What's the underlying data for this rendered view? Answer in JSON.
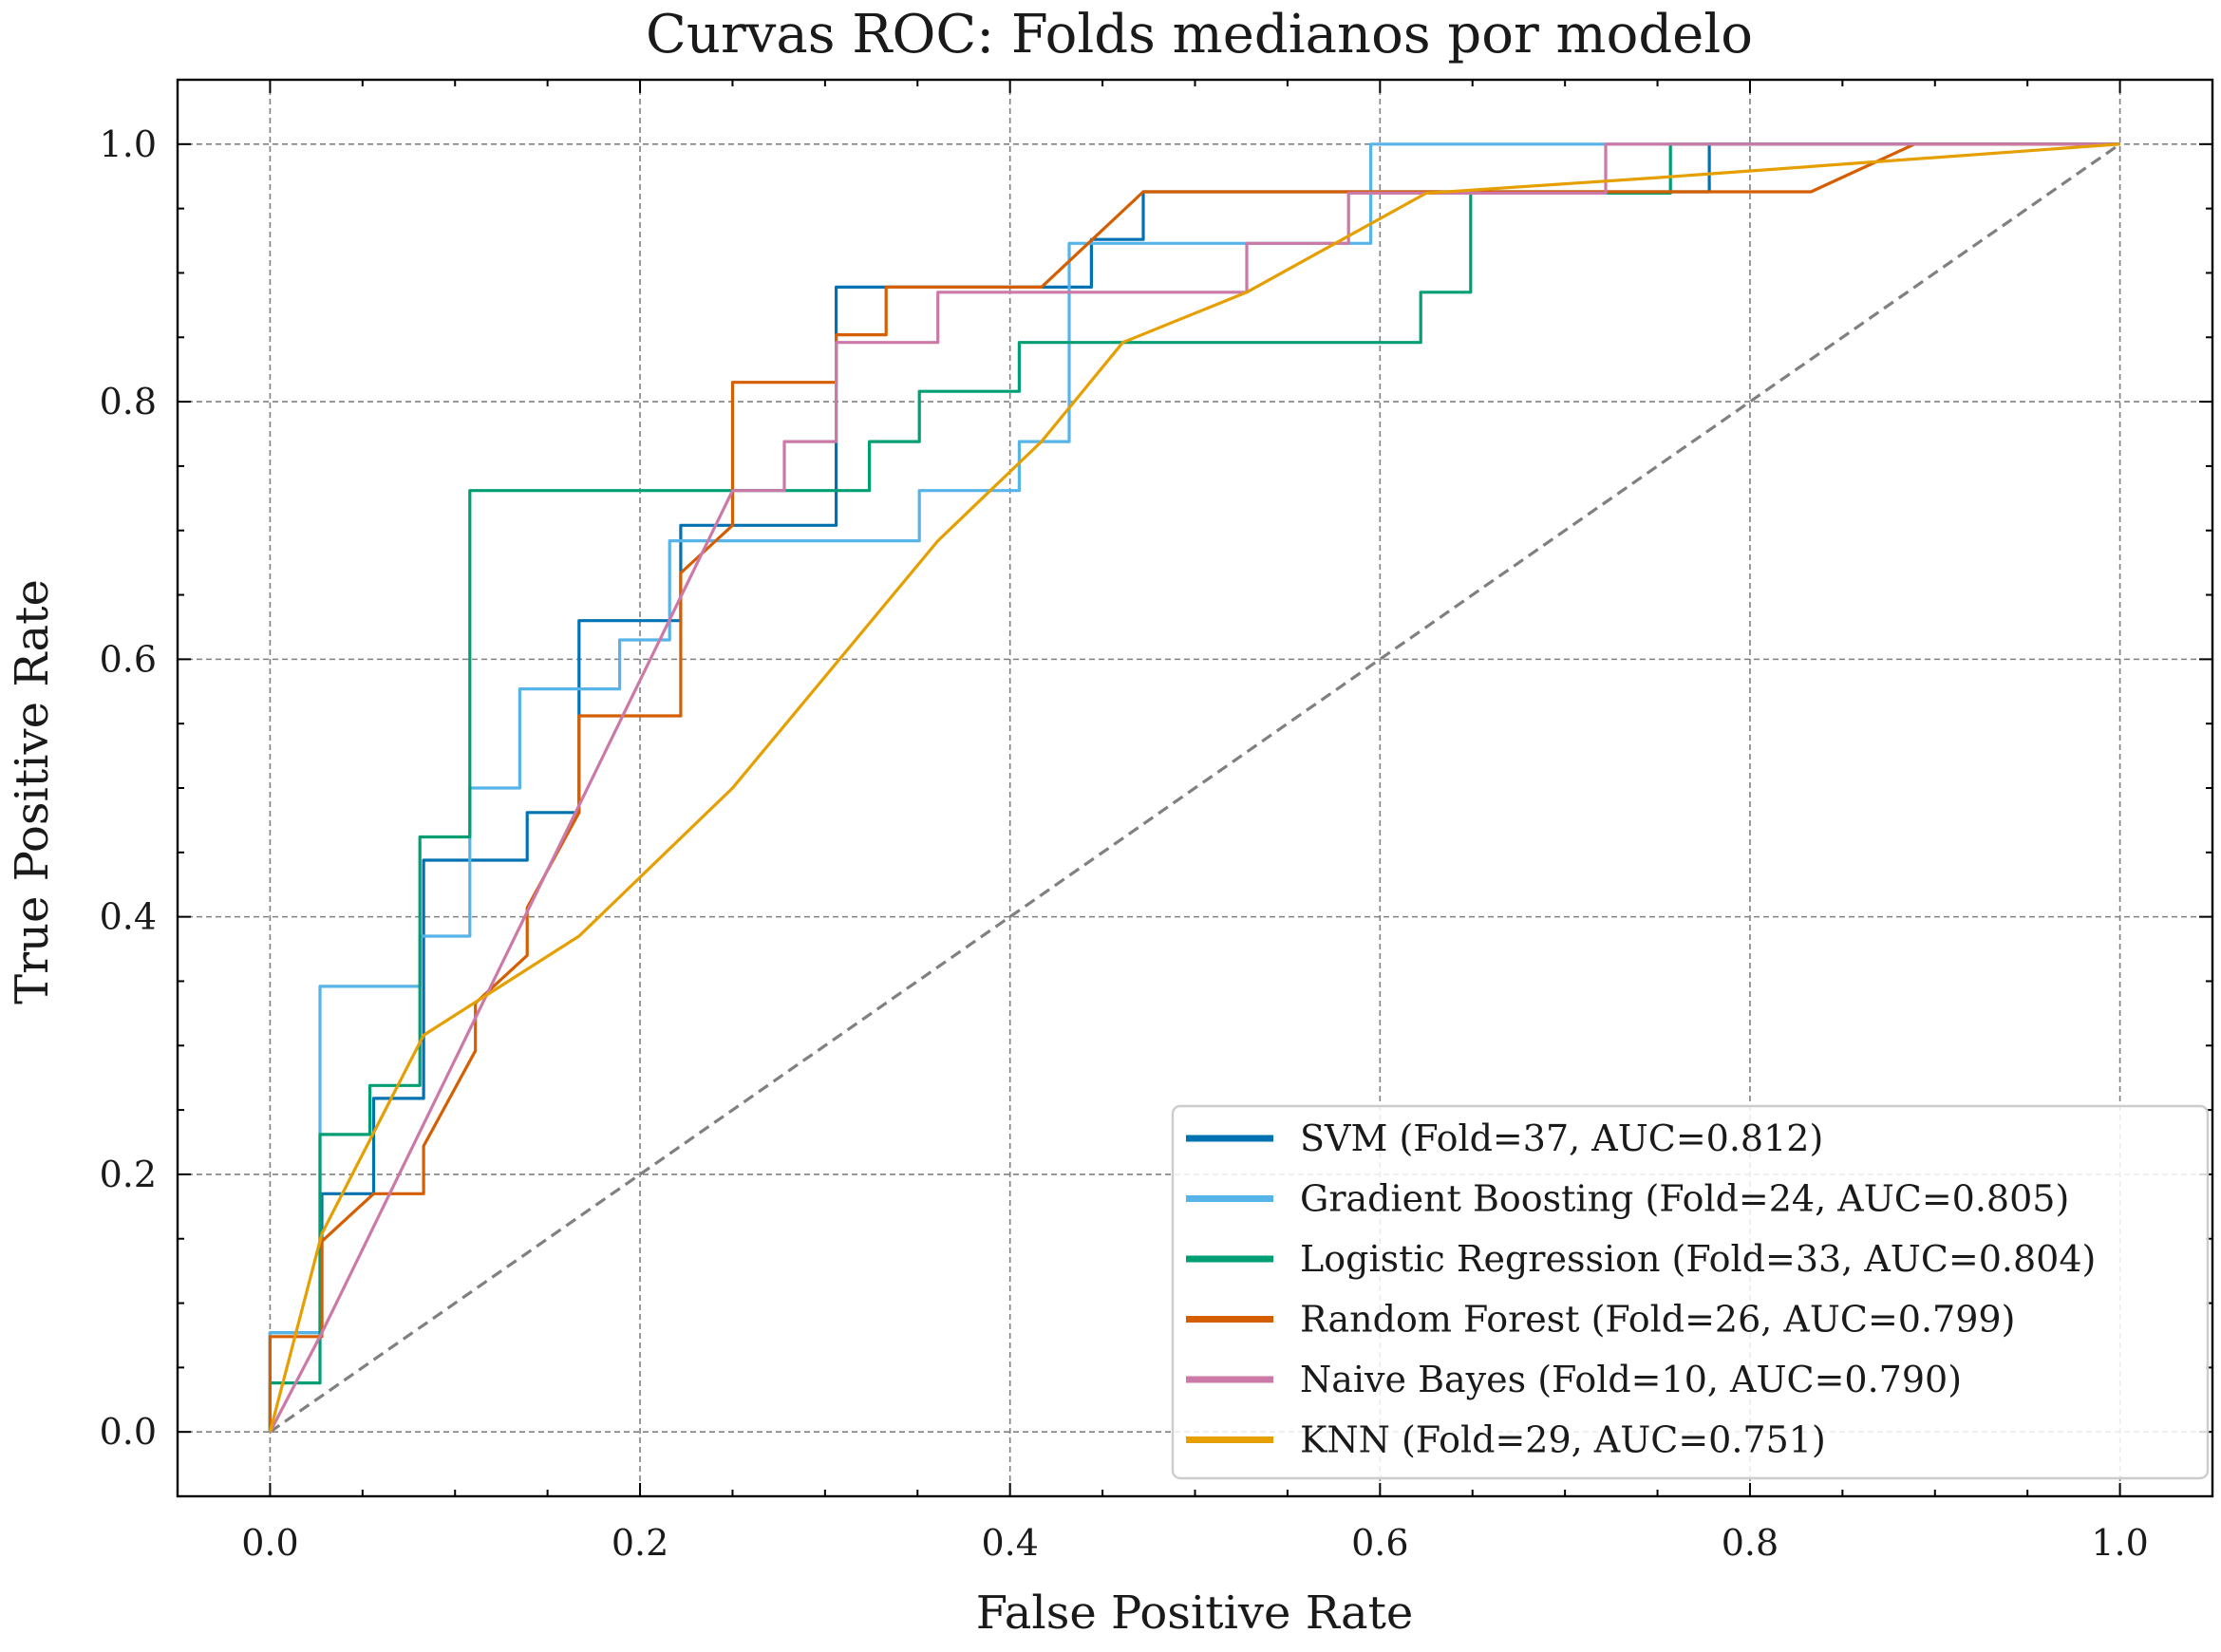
{
  "chart_data": {
    "type": "line",
    "title": "Curvas ROC: Folds medianos por modelo",
    "xlabel": "False Positive Rate",
    "ylabel": "True Positive Rate",
    "xlim": [
      -0.05,
      1.05
    ],
    "ylim": [
      -0.05,
      1.05
    ],
    "xticks": [
      "0.0",
      "0.2",
      "0.4",
      "0.6",
      "0.8",
      "1.0"
    ],
    "yticks": [
      "0.0",
      "0.2",
      "0.4",
      "0.6",
      "0.8",
      "1.0"
    ],
    "grid": true,
    "legend_position": "lower-right",
    "reference_line": {
      "x": [
        0,
        1
      ],
      "y": [
        0,
        1
      ],
      "color": "#808080",
      "style": "dashed"
    },
    "series": [
      {
        "name": "SVM (Fold=37, AUC=0.812)",
        "color": "#0072b2",
        "x": [
          0,
          0,
          0.028,
          0.028,
          0.056,
          0.056,
          0.083,
          0.083,
          0.139,
          0.139,
          0.167,
          0.167,
          0.222,
          0.222,
          0.306,
          0.306,
          0.444,
          0.444,
          0.472,
          0.472,
          0.778,
          0.778,
          1.0
        ],
        "y": [
          0,
          0.077,
          0.077,
          0.185,
          0.185,
          0.259,
          0.259,
          0.444,
          0.444,
          0.481,
          0.481,
          0.63,
          0.63,
          0.704,
          0.704,
          0.889,
          0.889,
          0.926,
          0.926,
          0.963,
          0.963,
          1.0,
          1.0
        ]
      },
      {
        "name": "Gradient Boosting (Fold=24, AUC=0.805)",
        "color": "#56b4e9",
        "x": [
          0,
          0,
          0.027,
          0.027,
          0.081,
          0.081,
          0.108,
          0.108,
          0.135,
          0.135,
          0.189,
          0.189,
          0.216,
          0.216,
          0.351,
          0.351,
          0.405,
          0.405,
          0.432,
          0.432,
          0.595,
          0.595,
          1.0
        ],
        "y": [
          0,
          0.077,
          0.077,
          0.346,
          0.346,
          0.385,
          0.385,
          0.5,
          0.5,
          0.577,
          0.577,
          0.615,
          0.615,
          0.692,
          0.692,
          0.731,
          0.731,
          0.769,
          0.769,
          0.923,
          0.923,
          1.0,
          1.0
        ]
      },
      {
        "name": "Logistic Regression (Fold=33, AUC=0.804)",
        "color": "#009e73",
        "x": [
          0,
          0,
          0.027,
          0.027,
          0.054,
          0.054,
          0.081,
          0.081,
          0.108,
          0.108,
          0.324,
          0.324,
          0.351,
          0.351,
          0.405,
          0.405,
          0.622,
          0.622,
          0.649,
          0.649,
          0.757,
          0.757,
          1.0
        ],
        "y": [
          0,
          0.038,
          0.038,
          0.231,
          0.231,
          0.269,
          0.269,
          0.462,
          0.462,
          0.731,
          0.731,
          0.769,
          0.769,
          0.808,
          0.808,
          0.846,
          0.846,
          0.885,
          0.885,
          0.962,
          0.962,
          1.0,
          1.0
        ]
      },
      {
        "name": "Random Forest (Fold=26, AUC=0.799)",
        "color": "#d55e00",
        "x": [
          0,
          0,
          0.028,
          0.028,
          0.056,
          0.083,
          0.083,
          0.111,
          0.111,
          0.139,
          0.139,
          0.167,
          0.167,
          0.222,
          0.222,
          0.25,
          0.25,
          0.306,
          0.306,
          0.333,
          0.333,
          0.417,
          0.472,
          0.833,
          0.889,
          1.0
        ],
        "y": [
          0,
          0.074,
          0.074,
          0.148,
          0.185,
          0.185,
          0.222,
          0.296,
          0.333,
          0.37,
          0.407,
          0.481,
          0.556,
          0.556,
          0.667,
          0.704,
          0.815,
          0.815,
          0.852,
          0.852,
          0.889,
          0.889,
          0.963,
          0.963,
          1.0,
          1.0
        ]
      },
      {
        "name": "Naive Bayes (Fold=10, AUC=0.790)",
        "color": "#cc79a7",
        "x": [
          0,
          0.028,
          0.25,
          0.278,
          0.278,
          0.306,
          0.306,
          0.361,
          0.361,
          0.528,
          0.528,
          0.583,
          0.583,
          0.722,
          0.722,
          1.0
        ],
        "y": [
          0,
          0.077,
          0.731,
          0.731,
          0.769,
          0.769,
          0.846,
          0.846,
          0.885,
          0.885,
          0.923,
          0.923,
          0.962,
          0.962,
          1.0,
          1.0
        ]
      },
      {
        "name": "KNN (Fold=29, AUC=0.751)",
        "color": "#e69f00",
        "x": [
          0,
          0.028,
          0.083,
          0.167,
          0.25,
          0.361,
          0.417,
          0.461,
          0.528,
          0.625,
          0.75,
          1.0
        ],
        "y": [
          0,
          0.154,
          0.308,
          0.385,
          0.5,
          0.692,
          0.769,
          0.846,
          0.885,
          0.962,
          0.974,
          1.0
        ]
      }
    ]
  }
}
